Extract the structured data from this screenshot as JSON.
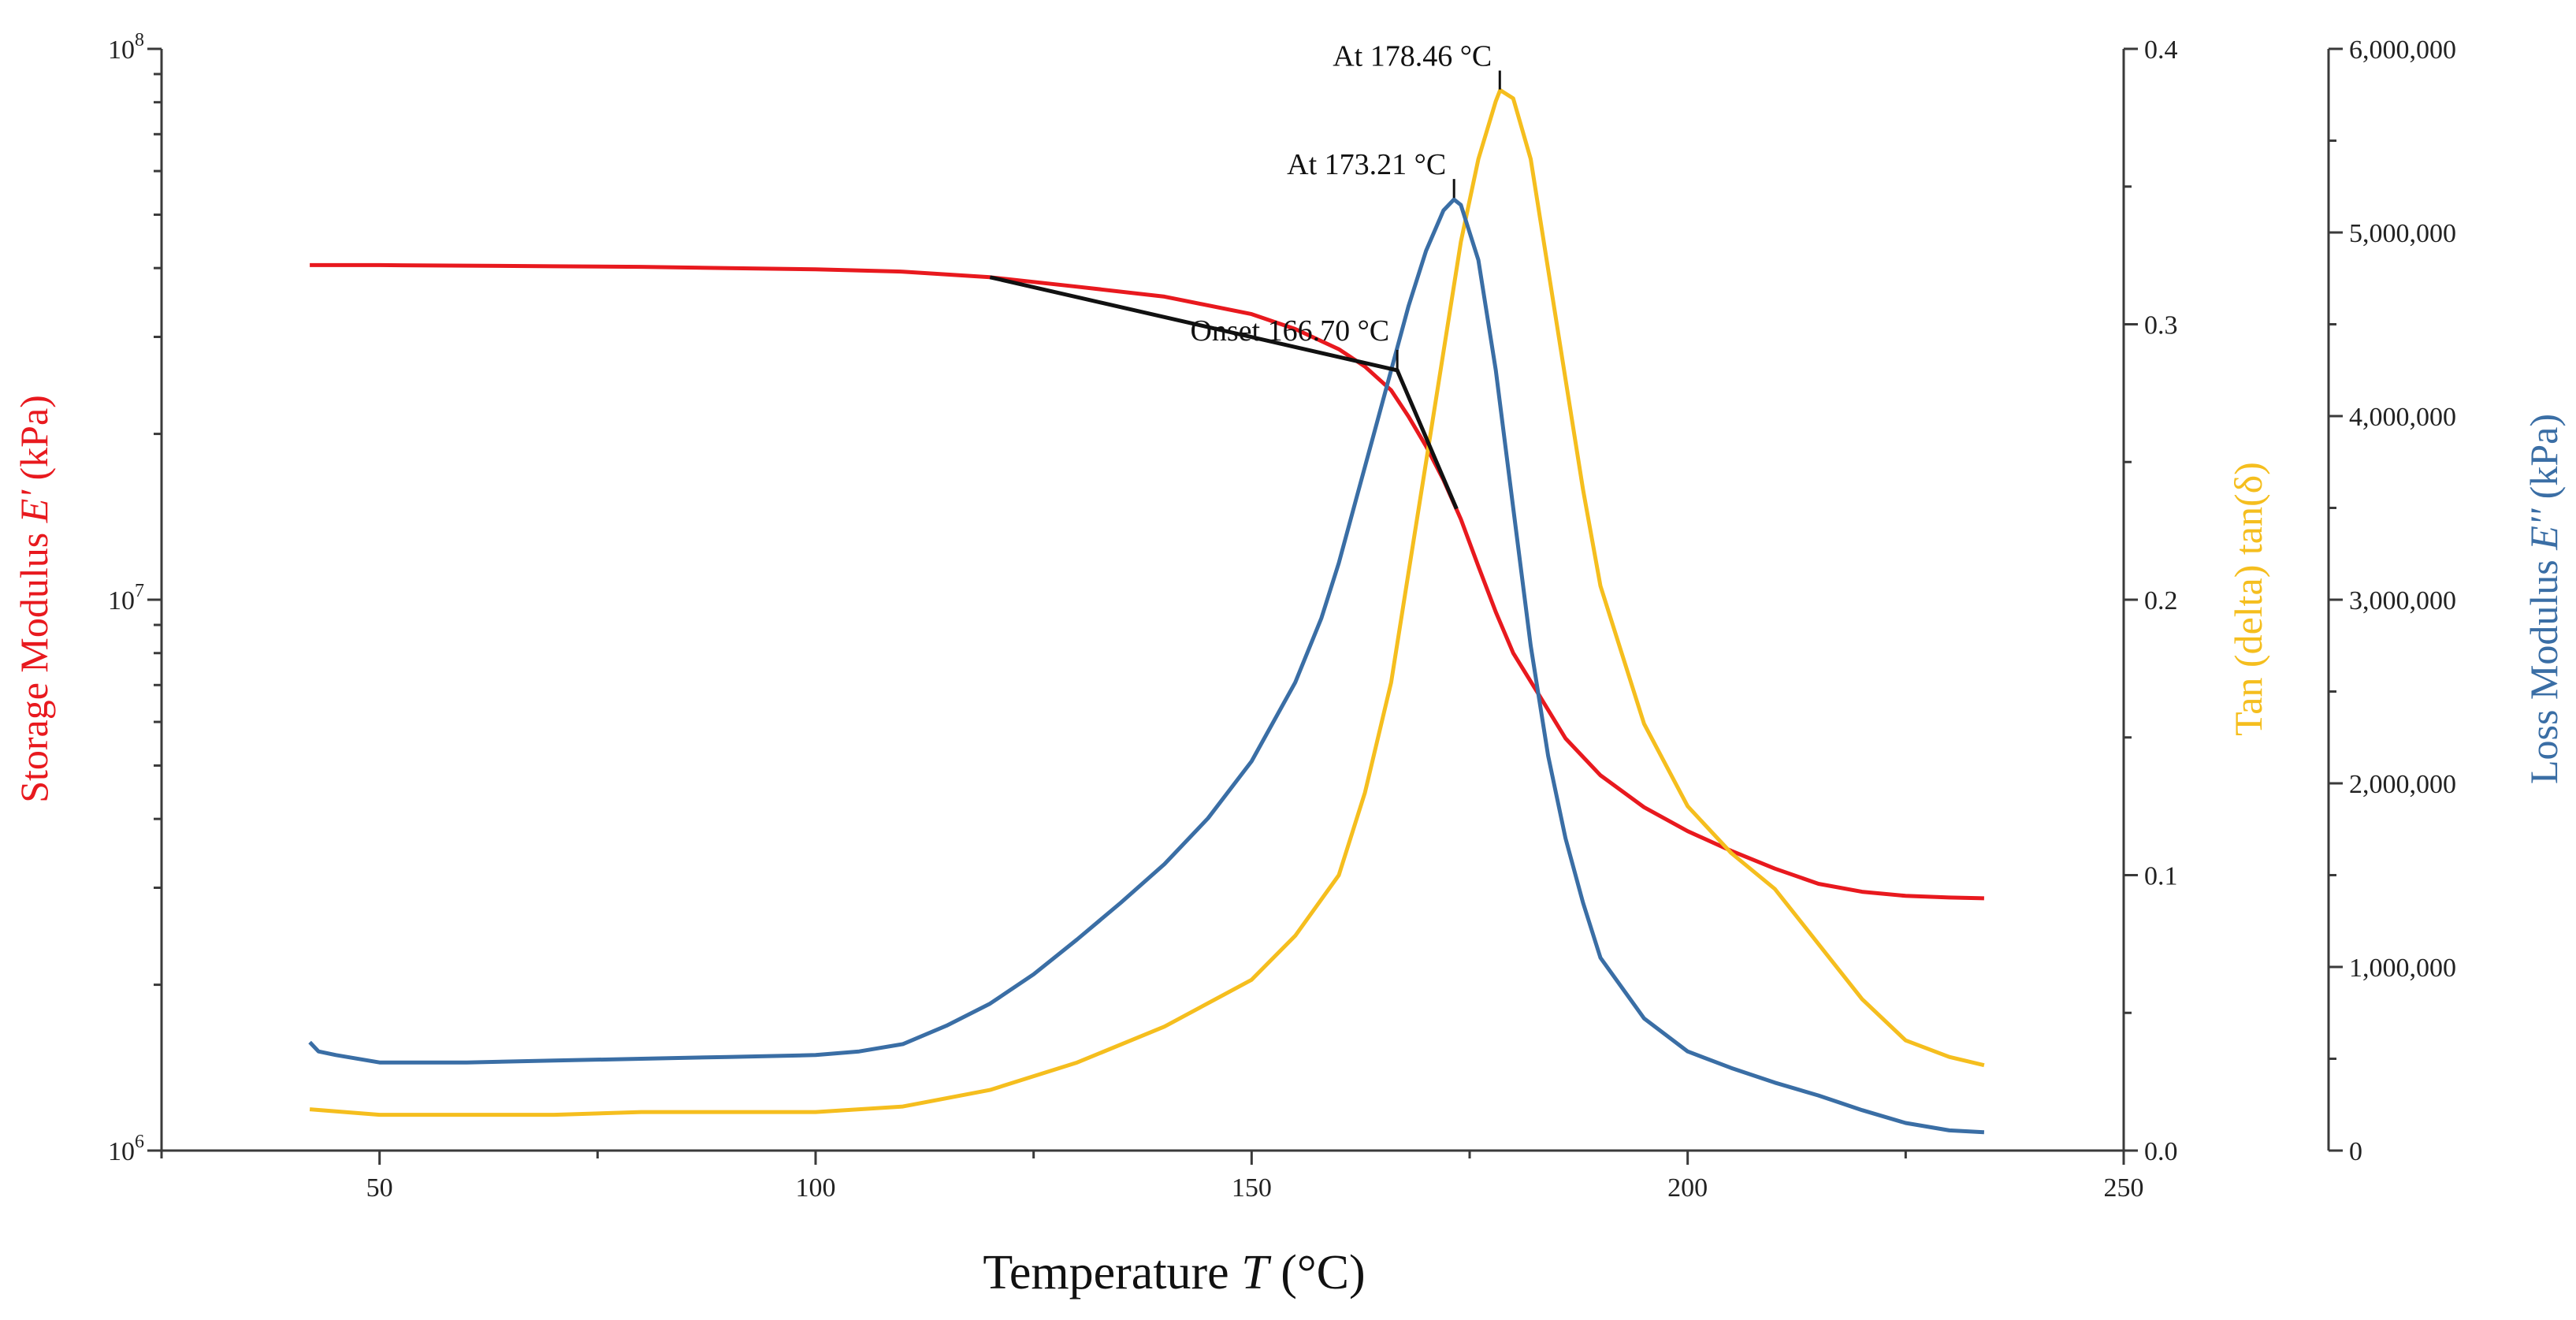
{
  "chart_data": {
    "type": "line",
    "title": "",
    "x_axis": {
      "label": "Temperature",
      "label_symbol": "T",
      "label_unit": "(°C)",
      "min": 25,
      "max": 250,
      "ticks": [
        50,
        100,
        150,
        200,
        250
      ],
      "tick_labels": [
        "50",
        "100",
        "150",
        "200",
        "250"
      ]
    },
    "y_left": {
      "label": "Storage Modulus",
      "label_symbol": "E'",
      "label_unit": "(kPa)",
      "scale": "log",
      "min": 1000000,
      "max": 100000000,
      "tick_labels": [
        {
          "value": 1000000,
          "base": "10",
          "exp": "6"
        },
        {
          "value": 10000000,
          "base": "10",
          "exp": "7"
        },
        {
          "value": 100000000,
          "base": "10",
          "exp": "8"
        }
      ],
      "color": "#e8191e"
    },
    "y_right1": {
      "label": "Tan (delta) tan(δ)",
      "scale": "linear",
      "min": 0,
      "max": 0.4,
      "ticks": [
        0,
        0.1,
        0.2,
        0.3,
        0.4
      ],
      "tick_labels": [
        "0.0",
        "0.1",
        "0.2",
        "0.3",
        "0.4"
      ],
      "color": "#f5be1e"
    },
    "y_right2": {
      "label": "Loss Modulus",
      "label_symbol": "E''",
      "label_unit": "(kPa)",
      "scale": "linear",
      "min": 0,
      "max": 6000000,
      "ticks": [
        0,
        1000000,
        2000000,
        3000000,
        4000000,
        5000000,
        6000000
      ],
      "tick_labels": [
        "0",
        "1,000,000",
        "2,000,000",
        "3,000,000",
        "4,000,000",
        "5,000,000",
        "6,000,000"
      ],
      "color": "#3a6ea5"
    },
    "series": [
      {
        "name": "Storage Modulus E'",
        "axis": "y_left",
        "color": "#e8191e",
        "x": [
          42,
          50,
          60,
          70,
          80,
          90,
          100,
          110,
          120,
          130,
          140,
          150,
          155,
          160,
          163,
          166,
          168,
          170,
          172,
          174,
          176,
          178,
          180,
          183,
          186,
          190,
          195,
          200,
          205,
          210,
          215,
          220,
          225,
          230,
          234
        ],
        "y": [
          40500000,
          40500000,
          40400000,
          40300000,
          40200000,
          40000000,
          39800000,
          39400000,
          38500000,
          37000000,
          35500000,
          33000000,
          31000000,
          28500000,
          26500000,
          24000000,
          21500000,
          19000000,
          16500000,
          14000000,
          11500000,
          9500000,
          8000000,
          6700000,
          5600000,
          4800000,
          4200000,
          3800000,
          3500000,
          3250000,
          3050000,
          2950000,
          2900000,
          2880000,
          2870000
        ]
      },
      {
        "name": "Tan (delta) tan(δ)",
        "axis": "y_right1",
        "color": "#f5be1e",
        "x": [
          42,
          50,
          60,
          70,
          80,
          90,
          100,
          110,
          120,
          130,
          140,
          150,
          155,
          160,
          163,
          166,
          168,
          170,
          172,
          174,
          176,
          178,
          178.5,
          180,
          182,
          184,
          186,
          188,
          190,
          195,
          200,
          205,
          210,
          215,
          220,
          225,
          230,
          234
        ],
        "y": [
          0.015,
          0.013,
          0.013,
          0.013,
          0.014,
          0.014,
          0.014,
          0.016,
          0.022,
          0.032,
          0.045,
          0.062,
          0.078,
          0.1,
          0.13,
          0.17,
          0.21,
          0.25,
          0.29,
          0.33,
          0.36,
          0.381,
          0.385,
          0.382,
          0.36,
          0.32,
          0.28,
          0.24,
          0.205,
          0.155,
          0.125,
          0.108,
          0.095,
          0.075,
          0.055,
          0.04,
          0.034,
          0.031
        ]
      },
      {
        "name": "Loss Modulus E''",
        "axis": "y_right2",
        "color": "#3a6ea5",
        "x": [
          42,
          43,
          45,
          50,
          60,
          70,
          80,
          90,
          100,
          105,
          110,
          115,
          120,
          125,
          130,
          135,
          140,
          145,
          150,
          155,
          158,
          160,
          162,
          164,
          166,
          168,
          170,
          172,
          173.2,
          174,
          176,
          178,
          180,
          182,
          184,
          186,
          188,
          190,
          195,
          200,
          205,
          210,
          215,
          220,
          225,
          230,
          234
        ],
        "y": [
          590000,
          540000,
          520000,
          480000,
          480000,
          490000,
          500000,
          510000,
          520000,
          540000,
          580000,
          680000,
          800000,
          960000,
          1150000,
          1350000,
          1560000,
          1810000,
          2120000,
          2550000,
          2900000,
          3200000,
          3550000,
          3900000,
          4250000,
          4600000,
          4900000,
          5120000,
          5180000,
          5150000,
          4850000,
          4250000,
          3500000,
          2750000,
          2150000,
          1700000,
          1350000,
          1050000,
          720000,
          540000,
          450000,
          370000,
          300000,
          220000,
          150000,
          110000,
          100000
        ]
      }
    ],
    "annotations": [
      {
        "text": "At 178.46 °C",
        "x": 178.46,
        "series": "Tan (delta) tan(δ)"
      },
      {
        "text": "At 173.21 °C",
        "x": 173.21,
        "series": "Loss Modulus E''"
      },
      {
        "text": "Onset 166.70 °C",
        "x": 166.7,
        "series": "Storage Modulus E'"
      }
    ]
  }
}
